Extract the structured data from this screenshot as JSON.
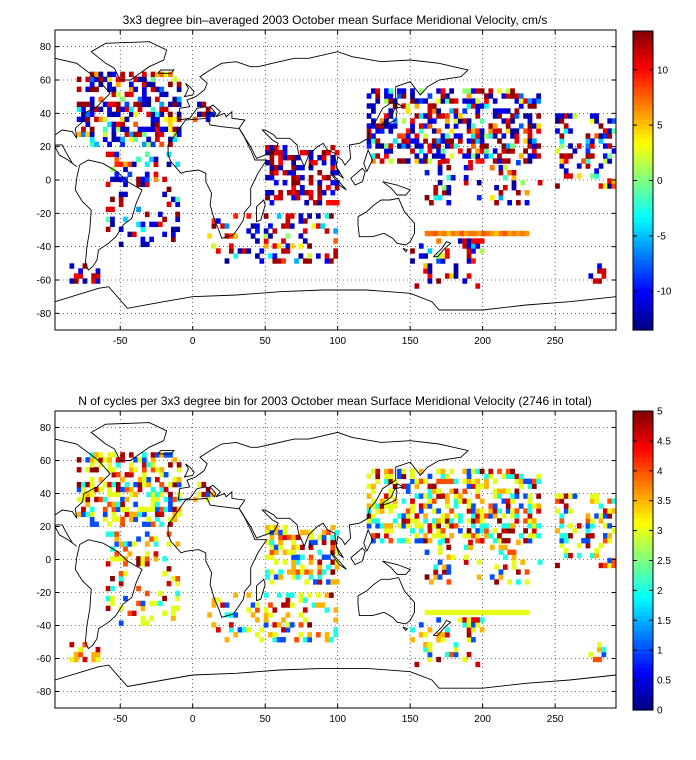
{
  "chart_data": [
    {
      "type": "heatmap",
      "title": "3x3 degree bin–averaged 2003 October mean Surface Meridional Velocity, cm/s",
      "xlim": [
        -95,
        292
      ],
      "ylim": [
        -90,
        90
      ],
      "xticks": [
        -50,
        0,
        50,
        100,
        150,
        200,
        250
      ],
      "yticks": [
        -80,
        -60,
        -40,
        -20,
        0,
        20,
        40,
        60,
        80
      ],
      "grid": true,
      "colormap": "jet",
      "colorbar": {
        "range": [
          -13.5,
          13.5
        ],
        "ticks": [
          10,
          5,
          0,
          -5,
          -10
        ]
      },
      "bin_size_deg": 3,
      "regions": [
        {
          "lon": [
            -80,
            -10
          ],
          "lat": [
            20,
            65
          ],
          "density": 0.55,
          "mix": "all"
        },
        {
          "lon": [
            -60,
            -10
          ],
          "lat": [
            -40,
            15
          ],
          "density": 0.25,
          "mix": "all"
        },
        {
          "lon": [
            0,
            15
          ],
          "lat": [
            35,
            45
          ],
          "density": 0.5,
          "mix": "all"
        },
        {
          "lon": [
            50,
            100
          ],
          "lat": [
            -15,
            20
          ],
          "density": 0.5,
          "mix": "strong"
        },
        {
          "lon": [
            10,
            100
          ],
          "lat": [
            -50,
            -20
          ],
          "density": 0.3,
          "mix": "all"
        },
        {
          "lon": [
            120,
            240
          ],
          "lat": [
            10,
            55
          ],
          "density": 0.5,
          "mix": "all"
        },
        {
          "lon": [
            160,
            240
          ],
          "lat": [
            -15,
            10
          ],
          "density": 0.2,
          "mix": "all"
        },
        {
          "lon": [
            150,
            200
          ],
          "lat": [
            -65,
            -35
          ],
          "density": 0.25,
          "mix": "all"
        },
        {
          "lon": [
            250,
            290
          ],
          "lat": [
            -5,
            40
          ],
          "density": 0.3,
          "mix": "all"
        },
        {
          "lon": [
            -85,
            -65
          ],
          "lat": [
            -62,
            -52
          ],
          "density": 0.4,
          "mix": "strong"
        },
        {
          "lon": [
            270,
            285
          ],
          "lat": [
            -62,
            -52
          ],
          "density": 0.4,
          "mix": "strong"
        }
      ],
      "line_feature": {
        "lon": [
          160,
          230
        ],
        "lat": -32,
        "values_top": [
          7,
          7,
          8,
          6,
          7,
          5,
          7,
          6,
          8,
          6,
          7,
          7,
          6,
          8,
          7,
          6,
          5,
          7,
          8,
          6,
          7,
          6,
          7,
          6
        ]
      }
    },
    {
      "type": "heatmap",
      "title": "N of cycles per 3x3 degree bin for 2003 October mean Surface Meridional Velocity (2746 in total)",
      "xlim": [
        -95,
        292
      ],
      "ylim": [
        -90,
        90
      ],
      "xticks": [
        -50,
        0,
        50,
        100,
        150,
        200,
        250
      ],
      "yticks": [
        -80,
        -60,
        -40,
        -20,
        0,
        20,
        40,
        60,
        80
      ],
      "grid": true,
      "colormap": "jet",
      "colorbar": {
        "range": [
          0,
          5
        ],
        "ticks": [
          5,
          4.5,
          4,
          3.5,
          3,
          2.5,
          2,
          1.5,
          1,
          0.5,
          0
        ]
      },
      "total_cycles": 2746,
      "bin_size_deg": 3,
      "line_feature_value": 3
    }
  ]
}
